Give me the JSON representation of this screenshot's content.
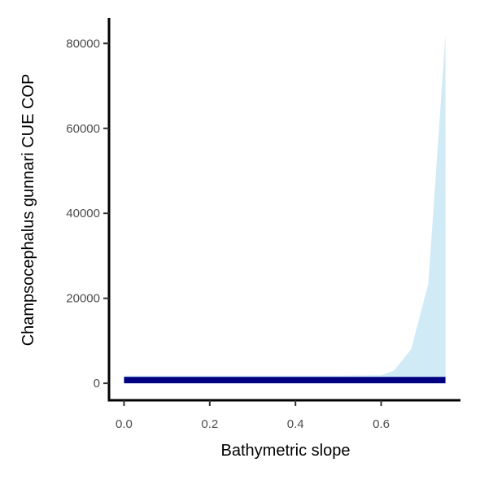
{
  "chart_data": {
    "type": "area",
    "title": "",
    "xlabel": "Bathymetric slope",
    "ylabel": "Champsocephalus gunnari  CUE COP",
    "xlim": [
      -0.035,
      0.785
    ],
    "ylim": [
      -4000,
      86000
    ],
    "x_ticks": [
      0.0,
      0.2,
      0.4,
      0.6
    ],
    "x_tick_labels": [
      "0.0",
      "0.2",
      "0.4",
      "0.6"
    ],
    "y_ticks": [
      0,
      20000,
      40000,
      60000,
      80000
    ],
    "y_tick_labels": [
      "0",
      "20000",
      "40000",
      "60000",
      "80000"
    ],
    "grid": false,
    "legend": "none",
    "series": [
      {
        "role": "upper-band",
        "color": "#d0eaf6",
        "x": [
          0.0,
          0.1,
          0.2,
          0.3,
          0.4,
          0.5,
          0.6,
          0.63,
          0.67,
          0.71,
          0.75
        ],
        "lower": [
          0,
          0,
          0,
          0,
          0,
          0,
          0,
          0,
          0,
          0,
          0
        ],
        "upper": [
          1800,
          1800,
          1800,
          1800,
          1800,
          1800,
          1900,
          3000,
          8000,
          23500,
          82000
        ]
      },
      {
        "role": "fitted-band",
        "color": "#000080",
        "x": [
          0.0,
          0.75
        ],
        "lower": [
          0,
          0
        ],
        "upper": [
          1500,
          1500
        ]
      }
    ]
  }
}
